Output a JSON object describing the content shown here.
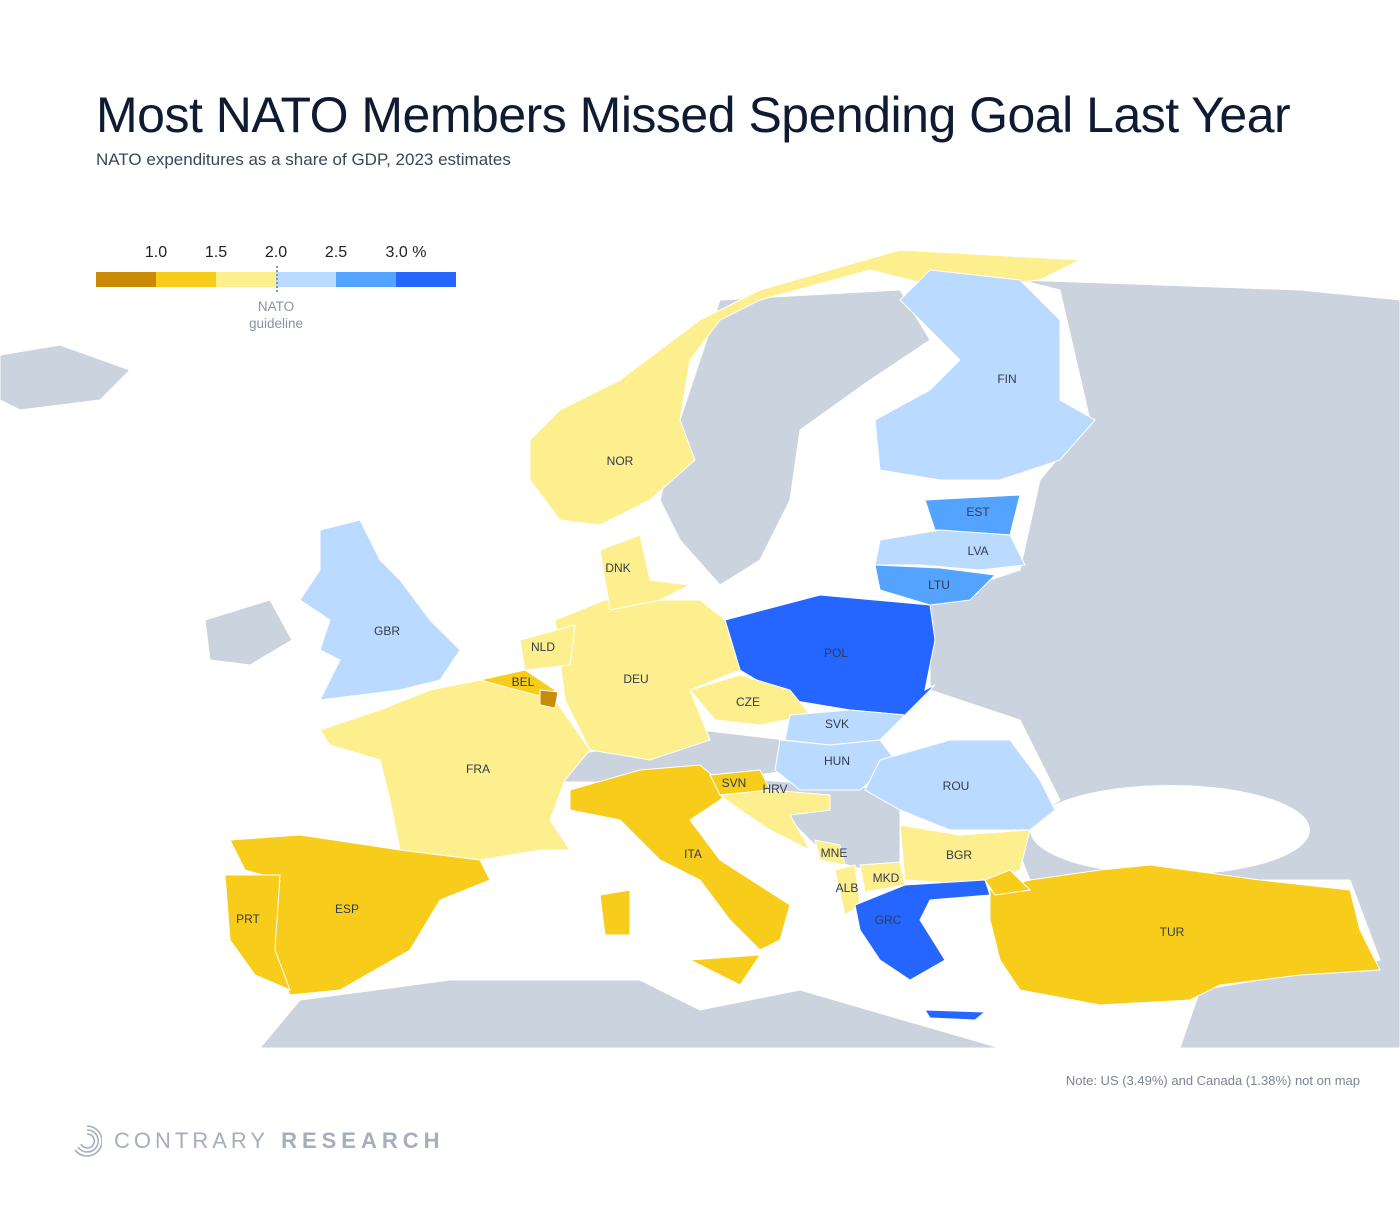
{
  "title": "Most NATO Members Missed Spending Goal Last Year",
  "subtitle": "NATO expenditures as a share of GDP, 2023 estimates",
  "legend": {
    "ticks": [
      "1.0",
      "1.5",
      "2.0",
      "2.5",
      "3.0 %"
    ],
    "colors": [
      "#C98B06",
      "#F8CC1B",
      "#FDEE8E",
      "#BBDAFF",
      "#54A3FF",
      "#2466FF"
    ],
    "guideline_label_1": "NATO",
    "guideline_label_2": "guideline"
  },
  "non_nato_color": "#CBD3DE",
  "countries": [
    {
      "code": "NOR",
      "bucket": 2
    },
    {
      "code": "FIN",
      "bucket": 3
    },
    {
      "code": "EST",
      "bucket": 4
    },
    {
      "code": "LVA",
      "bucket": 3
    },
    {
      "code": "LTU",
      "bucket": 4
    },
    {
      "code": "POL",
      "bucket": 5
    },
    {
      "code": "DEU",
      "bucket": 2
    },
    {
      "code": "DNK",
      "bucket": 2
    },
    {
      "code": "NLD",
      "bucket": 2
    },
    {
      "code": "BEL",
      "bucket": 1
    },
    {
      "code": "FRA",
      "bucket": 2
    },
    {
      "code": "GBR",
      "bucket": 3
    },
    {
      "code": "ESP",
      "bucket": 1
    },
    {
      "code": "PRT",
      "bucket": 1
    },
    {
      "code": "ITA",
      "bucket": 1
    },
    {
      "code": "CZE",
      "bucket": 2
    },
    {
      "code": "SVK",
      "bucket": 3
    },
    {
      "code": "HUN",
      "bucket": 3
    },
    {
      "code": "ROU",
      "bucket": 3
    },
    {
      "code": "SVN",
      "bucket": 1
    },
    {
      "code": "HRV",
      "bucket": 2
    },
    {
      "code": "MNE",
      "bucket": 2
    },
    {
      "code": "ALB",
      "bucket": 2
    },
    {
      "code": "MKD",
      "bucket": 2
    },
    {
      "code": "BGR",
      "bucket": 2
    },
    {
      "code": "GRC",
      "bucket": 5
    },
    {
      "code": "TUR",
      "bucket": 1
    }
  ],
  "note": "Note: US (3.49%) and Canada (1.38%) not on map",
  "brand": {
    "light": "CONTRARY",
    "bold": "RESEARCH"
  }
}
